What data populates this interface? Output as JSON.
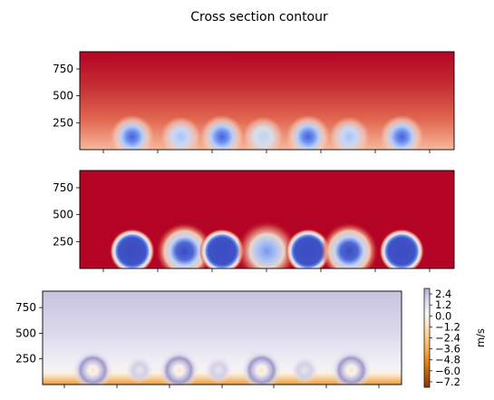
{
  "figure": {
    "title": "Cross section contour"
  },
  "chart_data": [
    {
      "type": "heatmap",
      "title": "",
      "colormap": "coolwarm",
      "xlabel": "",
      "ylabel": "",
      "x_ticks": [],
      "y_ticks": [
        250,
        500,
        750
      ],
      "ylim": [
        0,
        910
      ],
      "background": "smooth vertical gradient: dark red at top, light red/salmon near bottom",
      "features": [
        {
          "x_center": 0.14,
          "y_center": 120,
          "intensity": "strong"
        },
        {
          "x_center": 0.27,
          "y_center": 120,
          "intensity": "weak"
        },
        {
          "x_center": 0.38,
          "y_center": 120,
          "intensity": "strong"
        },
        {
          "x_center": 0.49,
          "y_center": 120,
          "intensity": "weaker"
        },
        {
          "x_center": 0.61,
          "y_center": 120,
          "intensity": "strong"
        },
        {
          "x_center": 0.72,
          "y_center": 120,
          "intensity": "weak"
        },
        {
          "x_center": 0.86,
          "y_center": 120,
          "intensity": "strong"
        }
      ]
    },
    {
      "type": "heatmap",
      "title": "",
      "colormap": "coolwarm",
      "xlabel": "",
      "ylabel": "",
      "x_ticks": [],
      "y_ticks": [
        250,
        500,
        750
      ],
      "ylim": [
        0,
        910
      ],
      "background": "uniform dark red",
      "features": [
        {
          "x_center": 0.14,
          "y_center": 160,
          "intensity": "strong"
        },
        {
          "x_center": 0.28,
          "y_center": 160,
          "intensity": "medium"
        },
        {
          "x_center": 0.38,
          "y_center": 160,
          "intensity": "strong"
        },
        {
          "x_center": 0.5,
          "y_center": 160,
          "intensity": "weak"
        },
        {
          "x_center": 0.61,
          "y_center": 160,
          "intensity": "strong"
        },
        {
          "x_center": 0.72,
          "y_center": 160,
          "intensity": "medium"
        },
        {
          "x_center": 0.86,
          "y_center": 160,
          "intensity": "strong"
        }
      ]
    },
    {
      "type": "heatmap",
      "title": "",
      "colormap": "PuOr",
      "xlabel": "",
      "ylabel": "",
      "x_ticks": [],
      "y_ticks": [
        250,
        500,
        750
      ],
      "ylim": [
        0,
        910
      ],
      "background": "light purple at top fading to white, orange band at bottom",
      "features": [
        {
          "x_center": 0.14,
          "y_center": 140,
          "intensity": "strong"
        },
        {
          "x_center": 0.27,
          "y_center": 140,
          "intensity": "weak"
        },
        {
          "x_center": 0.38,
          "y_center": 140,
          "intensity": "strong"
        },
        {
          "x_center": 0.49,
          "y_center": 140,
          "intensity": "weak"
        },
        {
          "x_center": 0.61,
          "y_center": 140,
          "intensity": "strong"
        },
        {
          "x_center": 0.73,
          "y_center": 140,
          "intensity": "weak"
        },
        {
          "x_center": 0.86,
          "y_center": 140,
          "intensity": "strong"
        }
      ],
      "colorbar": {
        "label": "m/s",
        "range": [
          -7.8,
          3.0
        ],
        "ticks": [
          "2.4",
          "1.2",
          "0.0",
          "−1.2",
          "−2.4",
          "−3.6",
          "−4.8",
          "−6.0",
          "−7.2"
        ]
      }
    }
  ],
  "colors": {
    "dark_red": "#b40426",
    "light_red": "#f4987a",
    "blue_strong": "#3b4cc0",
    "blue_light": "#b9d0f9",
    "purple": "#c4c0de",
    "orange": "#e08214",
    "brown": "#7f3b08"
  }
}
